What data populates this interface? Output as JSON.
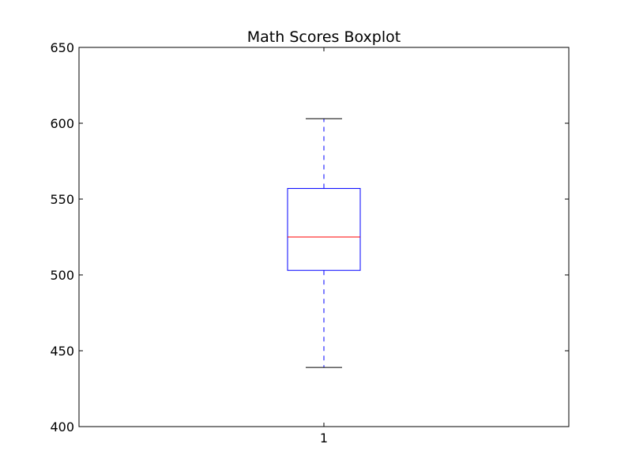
{
  "chart_data": {
    "type": "boxplot",
    "title": "Math Scores Boxplot",
    "xlabel": "",
    "ylabel": "",
    "ylim": [
      400,
      650
    ],
    "y_ticks": [
      400,
      450,
      500,
      550,
      600,
      650
    ],
    "x_ticks": [
      "1"
    ],
    "grid": false,
    "boxes": [
      {
        "position": 1,
        "whisker_low": 439,
        "q1": 503,
        "median": 525,
        "q3": 557,
        "whisker_high": 603
      }
    ],
    "colors": {
      "box": "#0000ff",
      "median": "#ff0000",
      "whisker": "#0000ff",
      "cap": "#000000",
      "axes": "#000000"
    }
  }
}
